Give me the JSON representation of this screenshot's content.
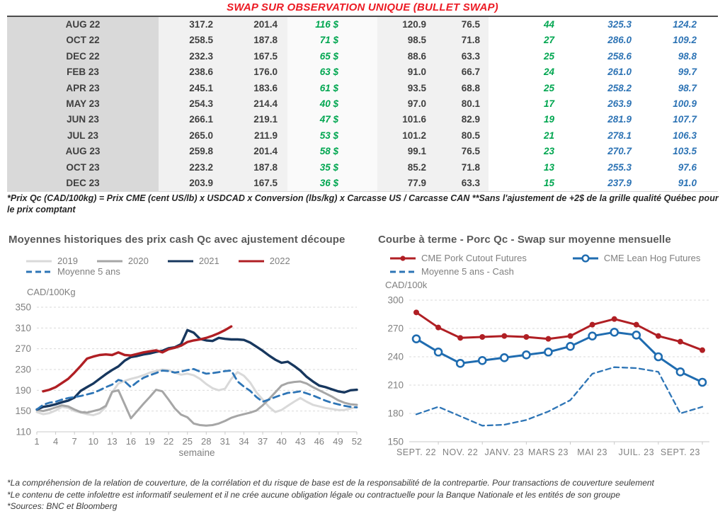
{
  "page_title": "SWAP SUR OBSERVATION UNIQUE (BULLET SWAP)",
  "colors": {
    "title_red": "#ec1b24",
    "table_green": "#00a650",
    "table_blue": "#2e74b5",
    "chart_red": "#b01f24",
    "chart_navy": "#17375e",
    "chart_blue": "#1f6cb0",
    "gray_2019": "#d9d9d9",
    "gray_2020": "#a6a6a6"
  },
  "table": {
    "rows": [
      {
        "month": "AUG 22",
        "values": [
          "317.2",
          "201.4",
          "116 $",
          "120.9",
          "76.5",
          "44",
          "325.3",
          "124.2"
        ]
      },
      {
        "month": "OCT 22",
        "values": [
          "258.5",
          "187.8",
          "71 $",
          "98.5",
          "71.8",
          "27",
          "286.0",
          "109.2"
        ]
      },
      {
        "month": "DEC 22",
        "values": [
          "232.3",
          "167.5",
          "65 $",
          "88.6",
          "63.3",
          "25",
          "258.6",
          "98.8"
        ]
      },
      {
        "month": "FEB 23",
        "values": [
          "238.6",
          "176.0",
          "63 $",
          "91.0",
          "66.7",
          "24",
          "261.0",
          "99.7"
        ]
      },
      {
        "month": "APR 23",
        "values": [
          "245.1",
          "183.6",
          "61 $",
          "93.5",
          "68.8",
          "25",
          "258.2",
          "98.7"
        ]
      },
      {
        "month": "MAY 23",
        "values": [
          "254.3",
          "214.4",
          "40 $",
          "97.0",
          "80.1",
          "17",
          "263.9",
          "100.9"
        ]
      },
      {
        "month": "JUN 23",
        "values": [
          "266.1",
          "219.1",
          "47 $",
          "101.6",
          "82.9",
          "19",
          "281.9",
          "107.7"
        ]
      },
      {
        "month": "JUL 23",
        "values": [
          "265.0",
          "211.9",
          "53 $",
          "101.2",
          "80.5",
          "21",
          "278.1",
          "106.3"
        ]
      },
      {
        "month": "AUG 23",
        "values": [
          "259.8",
          "201.4",
          "58 $",
          "99.1",
          "76.5",
          "23",
          "270.7",
          "103.5"
        ]
      },
      {
        "month": "OCT 23",
        "values": [
          "223.2",
          "187.8",
          "35 $",
          "85.2",
          "71.8",
          "13",
          "255.3",
          "97.6"
        ]
      },
      {
        "month": "DEC 23",
        "values": [
          "203.9",
          "167.5",
          "36 $",
          "77.9",
          "63.3",
          "15",
          "237.9",
          "91.0"
        ]
      }
    ]
  },
  "table_footnote": "*Prix Qc (CAD/100kg) = Prix CME (cent US/lb) x USDCAD x Conversion (lbs/kg) x Carcasse US / Carcasse CAN **Sans l'ajustement de +2$ de la grille qualité Québec pour le prix comptant",
  "chart_data": [
    {
      "type": "line",
      "title": "Moyennes historiques des prix cash Qc avec ajustement découpe",
      "ylabel": "CAD/100Kg",
      "xlabel": "semaine",
      "ylim": [
        110,
        350
      ],
      "yticks": [
        350,
        310,
        270,
        230,
        190,
        150,
        110
      ],
      "xticks": [
        1,
        4,
        7,
        10,
        13,
        16,
        19,
        22,
        25,
        28,
        31,
        34,
        37,
        40,
        43,
        46,
        49,
        52
      ],
      "x_range": [
        1,
        52
      ],
      "grid": "horizontal-dashed",
      "legend_position": "top",
      "series": [
        {
          "name": "2019",
          "color": "#d9d9d9",
          "style": "solid",
          "x_start": 1,
          "values": [
            148,
            144,
            146,
            151,
            158,
            156,
            150,
            147,
            144,
            142,
            146,
            158,
            186,
            203,
            208,
            212,
            215,
            219,
            224,
            227,
            230,
            229,
            224,
            220,
            222,
            219,
            212,
            202,
            194,
            190,
            193,
            212,
            225,
            218,
            205,
            186,
            172,
            158,
            148,
            152,
            160,
            168,
            175,
            168,
            162,
            159,
            156,
            154,
            152,
            152,
            155,
            158
          ]
        },
        {
          "name": "2020",
          "color": "#a6a6a6",
          "style": "solid",
          "x_start": 1,
          "values": [
            152,
            150,
            153,
            157,
            161,
            159,
            153,
            148,
            147,
            150,
            153,
            160,
            187,
            190,
            163,
            136,
            150,
            164,
            177,
            191,
            188,
            172,
            155,
            143,
            138,
            126,
            123,
            122,
            123,
            126,
            131,
            137,
            141,
            144,
            147,
            151,
            161,
            173,
            186,
            199,
            204,
            206,
            207,
            203,
            196,
            190,
            184,
            178,
            171,
            166,
            163,
            162
          ]
        },
        {
          "name": "2021",
          "color": "#17375e",
          "style": "solid",
          "x_start": 1,
          "values": [
            153,
            158,
            160,
            163,
            167,
            170,
            176,
            189,
            196,
            203,
            212,
            221,
            229,
            236,
            247,
            254,
            256,
            259,
            261,
            264,
            266,
            271,
            273,
            279,
            306,
            301,
            289,
            286,
            285,
            291,
            289,
            288,
            288,
            287,
            282,
            274,
            266,
            257,
            249,
            243,
            245,
            237,
            228,
            216,
            207,
            199,
            196,
            192,
            188,
            186,
            190,
            191
          ]
        },
        {
          "name": "2022",
          "color": "#b01f24",
          "style": "solid",
          "x_start": 2,
          "values": [
            188,
            191,
            196,
            204,
            212,
            224,
            237,
            251,
            255,
            258,
            259,
            258,
            263,
            258,
            257,
            260,
            263,
            265,
            267,
            263,
            269,
            272,
            276,
            283,
            286,
            288,
            291,
            295,
            300,
            306,
            313
          ]
        },
        {
          "name": "Moyenne 5 ans",
          "color": "#2e75b6",
          "style": "dashed",
          "x_start": 1,
          "values": [
            153,
            162,
            166,
            168,
            172,
            175,
            177,
            179,
            182,
            185,
            190,
            196,
            201,
            210,
            207,
            196,
            206,
            214,
            219,
            223,
            228,
            227,
            224,
            226,
            229,
            231,
            226,
            222,
            223,
            225,
            227,
            228,
            207,
            197,
            189,
            177,
            168,
            172,
            177,
            181,
            185,
            186,
            188,
            184,
            180,
            175,
            170,
            166,
            163,
            160,
            158,
            157
          ]
        }
      ]
    },
    {
      "type": "line",
      "title": "Courbe à terme - Porc Qc - Swap sur moyenne mensuelle",
      "ylabel": "CAD/100k",
      "xlabel": "",
      "ylim": [
        150,
        300
      ],
      "yticks": [
        300,
        270,
        240,
        210,
        180,
        150
      ],
      "x_tick_labels": [
        "SEPT. 22",
        "NOV. 22",
        "JANV. 23",
        "MARS 23",
        "MAI 23",
        "JUIL. 23",
        "SEPT. 23"
      ],
      "n_points": 14,
      "grid": "horizontal-dashed",
      "legend_position": "top",
      "series": [
        {
          "name": "CME Pork Cutout Futures",
          "color": "#b01f24",
          "style": "solid",
          "marker": "filled",
          "values": [
            287,
            271,
            260,
            261,
            262,
            261,
            259,
            262,
            274,
            280,
            274,
            262,
            256,
            247
          ]
        },
        {
          "name": "CME Lean Hog Futures",
          "color": "#1f6cb0",
          "style": "solid",
          "marker": "open",
          "values": [
            259,
            245,
            233,
            236,
            239,
            242,
            245,
            251,
            262,
            266,
            263,
            240,
            224,
            213
          ]
        },
        {
          "name": "Moyenne 5 ans - Cash",
          "color": "#2e75b6",
          "style": "dashed",
          "marker": "none",
          "values": [
            179,
            187,
            177,
            167,
            168,
            173,
            182,
            194,
            222,
            229,
            228,
            224,
            180,
            187
          ]
        }
      ]
    }
  ],
  "footnotes": [
    "*La compréhension de la relation de couverture, de la corrélation et du risque de base est de la responsabilité de la contrepartie. Pour transactions de couverture seulement",
    "*Le contenu de cette infolettre est informatif seulement et il ne crée aucune obligation légale ou contractuelle pour la Banque Nationale et les entités de son groupe",
    "*Sources: BNC et Bloomberg"
  ]
}
